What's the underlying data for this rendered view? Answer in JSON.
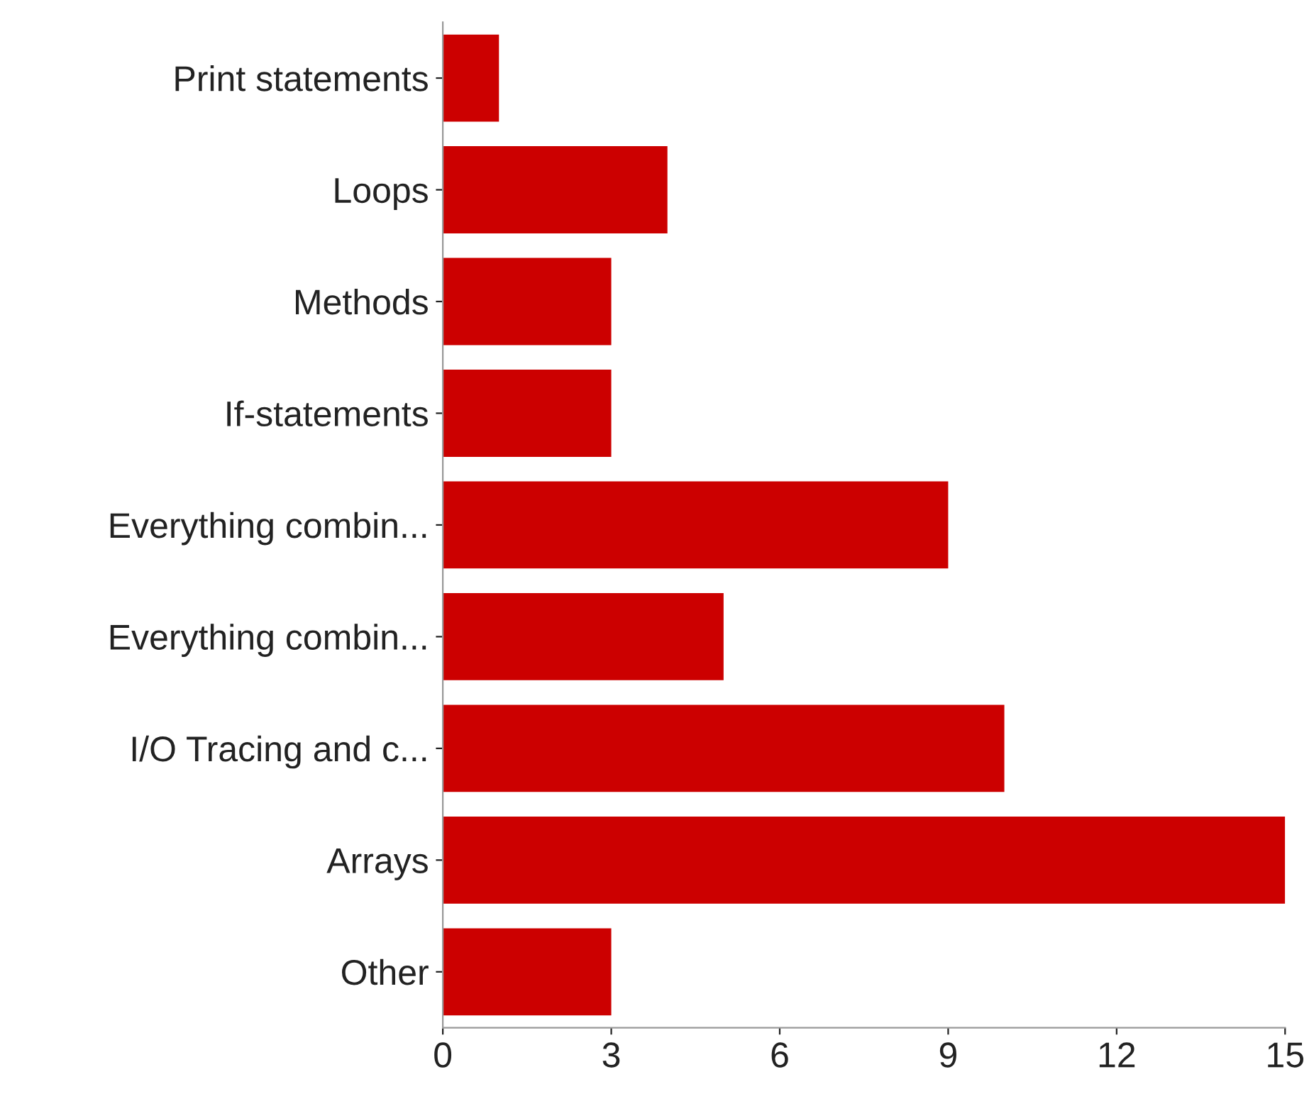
{
  "chart_data": {
    "type": "bar",
    "orientation": "horizontal",
    "categories": [
      "Print statements",
      "Loops",
      "Methods",
      "If-statements",
      "Everything combin...",
      "Everything combin...",
      "I/O Tracing and c...",
      "Arrays",
      "Other"
    ],
    "values": [
      1,
      4,
      3,
      3,
      9,
      5,
      10,
      15,
      3
    ],
    "color": "#cc0000",
    "xlim": [
      0,
      15
    ],
    "xticks": [
      0,
      3,
      6,
      9,
      12,
      15
    ],
    "grid": false,
    "legend": false
  }
}
